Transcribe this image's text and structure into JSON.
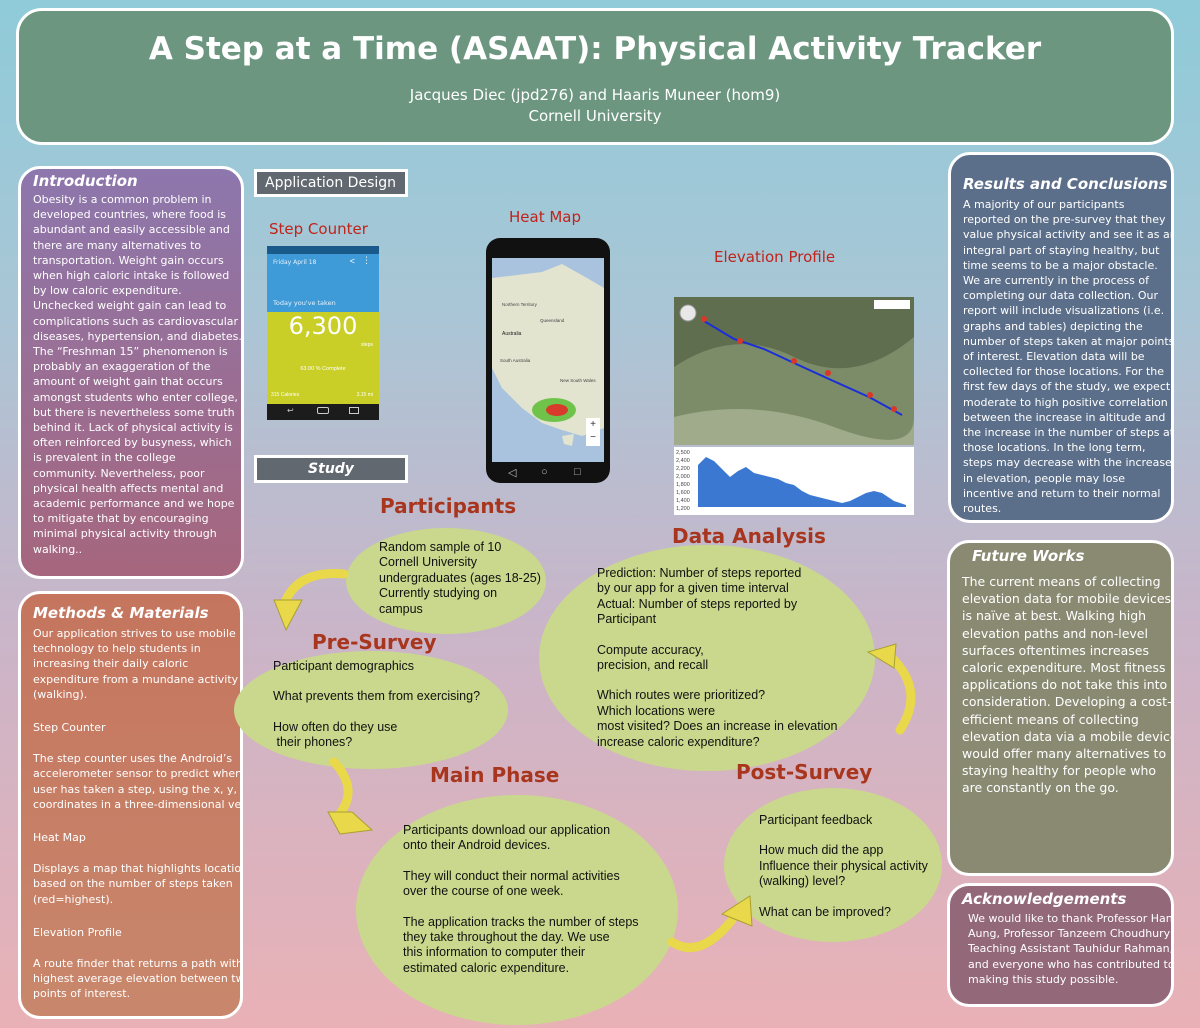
{
  "header": {
    "title": "A Step at a Time (ASAAT): Physical Activity Tracker",
    "authors": "Jacques Diec (jpd276) and Haaris Muneer (hom9)",
    "affiliation": "Cornell University"
  },
  "introduction": {
    "heading": "Introduction",
    "lines": [
      "Obesity is a common problem in",
      "developed countries, where food is",
      "abundant and easily accessible and",
      "there are many alternatives to",
      "transportation.  Weight gain occurs",
      "when high caloric intake is followed",
      "by low caloric expenditure.",
      "Unchecked weight gain can lead to",
      "complications such as cardiovascular",
      "diseases, hypertension, and diabetes.",
      "The “Freshman 15” phenomenon is",
      "probably an exaggeration of the",
      "amount of weight gain that occurs",
      "amongst students who enter college,",
      "but there is nevertheless some truth",
      "behind it.  Lack of physical activity is",
      "often reinforced by busyness, which",
      "is prevalent in the college",
      "community.   Nevertheless, poor",
      "physical health affects mental and",
      "academic performance and we hope",
      "to mitigate that by encouraging",
      "minimal physical activity through",
      "walking.."
    ]
  },
  "methods": {
    "heading": "Methods & Materials",
    "intro_lines": [
      "Our application strives to use mobile",
      "technology to help students in",
      "increasing their daily caloric",
      "expenditure from a mundane activity",
      "(walking)."
    ],
    "step_counter_title": "Step Counter",
    "step_counter_lines": [
      "The step counter uses the Android’s",
      "accelerometer sensor to predict when the",
      "user has taken a step, using the x, y, and z",
      "coordinates in a three-dimensional vector."
    ],
    "heat_map_title": "Heat Map",
    "heat_map_lines": [
      "Displays a map that highlights locations",
      "based on the number of steps taken",
      "(red=highest)."
    ],
    "elevation_title": "Elevation Profile",
    "elevation_lines": [
      "A route finder that returns a path with the",
      "highest average elevation between two",
      "points of interest."
    ]
  },
  "design": {
    "label": "Application Design",
    "step_counter_label": "Step Counter",
    "heat_map_label": "Heat Map",
    "elevation_label": "Elevation Profile",
    "phone": {
      "date": "Friday April 18",
      "today_text": "Today you've taken",
      "steps": "6,300",
      "steps_unit": "steps",
      "complete": "63.00 % Complete",
      "calories": "315 Calories",
      "distance": "3.15 mi"
    },
    "map_labels": {
      "territory": "Northern Territory",
      "queensland": "Queensland",
      "australia": "Australia",
      "south_australia": "South Australia",
      "nsw": "New South Wales"
    },
    "elev_ticks": [
      "2,500",
      "2,400",
      "2,200",
      "2,000",
      "1,800",
      "1,600",
      "1,400",
      "1,200"
    ]
  },
  "study": {
    "label": "Study",
    "participants_title": "Participants",
    "participants_lines": [
      "Random sample of 10",
      "Cornell University",
      "undergraduates (ages 18-25)",
      "Currently studying on",
      "campus"
    ],
    "presurvey_title": "Pre-Survey",
    "presurvey_items": [
      "Participant demographics",
      "What prevents them from exercising?",
      "How often do they use",
      " their phones?"
    ],
    "mainphase_title": "Main Phase",
    "mainphase_items": [
      "Participants download our application",
      "onto their Android devices.",
      "They will conduct their normal activities",
      "over the course of one week.",
      "The application tracks the number of steps",
      "they take throughout the day. We use",
      "this information to computer their",
      "estimated caloric expenditure."
    ],
    "analysis_title": "Data Analysis",
    "analysis_items": [
      "Prediction: Number of steps reported",
      "by our app for a given time interval",
      "Actual: Number of steps reported by",
      "Participant",
      "Compute accuracy,",
      "precision, and recall",
      "Which routes were prioritized?",
      "Which locations were",
      "most visited? Does an increase in elevation",
      "increase caloric expenditure?"
    ],
    "postsurvey_title": "Post-Survey",
    "postsurvey_items": [
      "Participant feedback",
      "How much did the app",
      "Influence their physical activity",
      "(walking) level?",
      "What can be improved?"
    ]
  },
  "results": {
    "heading": "Results and Conclusions",
    "lines": [
      "A majority of our participants",
      "reported on the pre-survey that they",
      "value physical activity and see it as an",
      "integral part of staying healthy, but",
      "time seems to be a major obstacle.",
      "We are currently in the process of",
      "completing our data collection.  Our",
      "report will include visualizations (i.e.",
      "graphs and tables)  depicting the",
      "number of steps taken at major points",
      "of interest.  Elevation data will be",
      "collected for those locations.  For the",
      "first few days of the study, we expect a",
      "moderate to high positive correlation",
      "between the increase in altitude and",
      "the increase in the number of steps at",
      "those locations.  In the long term,",
      "steps may decrease with the increase",
      "in elevation, people may lose",
      "incentive and  return to their normal",
      "routes."
    ]
  },
  "future": {
    "heading": "Future Works",
    "lines": [
      "The current means of collecting",
      "elevation data for mobile devices",
      "is naïve at best.  Walking high",
      "elevation paths and non-level",
      "surfaces oftentimes increases",
      "caloric expenditure.  Most fitness",
      "applications do not take this into",
      "consideration. Developing a cost-",
      "efficient means of collecting",
      "elevation data via a mobile device",
      "would offer many alternatives to",
      "staying healthy for people who",
      "are constantly on the go."
    ]
  },
  "ack": {
    "heading": "Acknowledgements",
    "lines": [
      "We would like to thank Professor Hane",
      "Aung, Professor Tanzeem Choudhury,",
      "Teaching Assistant Tauhidur Rahman,",
      "and everyone who has contributed to",
      "making this study possible."
    ]
  },
  "colors": {
    "accent_red": "#c0231a",
    "step_title": "#a8361e",
    "ellipse": "#c9d88c",
    "arrow": "#e8d84a"
  }
}
